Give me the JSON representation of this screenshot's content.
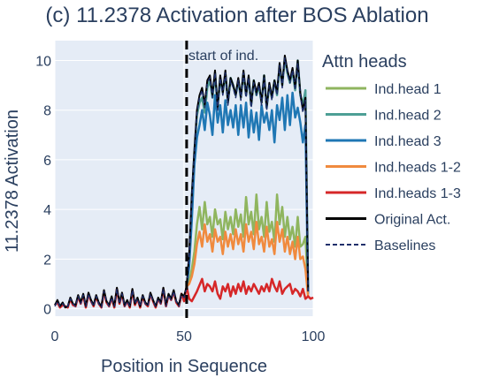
{
  "chart_data": {
    "type": "line",
    "title": "(c) 11.2378 Activation after BOS Ablation",
    "xlabel": "Position in Sequence",
    "ylabel": "11.2378 Activation",
    "xlim": [
      0,
      100
    ],
    "ylim": [
      -0.3,
      10.8
    ],
    "xticks": [
      0,
      50,
      100
    ],
    "yticks": [
      0,
      2,
      4,
      6,
      8,
      10
    ],
    "grid": true,
    "legend_title": "Attn heads",
    "legend_position": "right",
    "vline": {
      "x": 51,
      "label": "start of ind."
    },
    "series": [
      {
        "name": "Ind.head 1",
        "color": "#8fb55f",
        "dash": "solid",
        "segment": "late",
        "values": [
          0.9,
          1.1,
          1.6,
          2.3,
          3.4,
          4.1,
          3.2,
          4.3,
          3.4,
          3.7,
          2.9,
          4.0,
          3.4,
          3.6,
          2.8,
          3.9,
          3.2,
          3.7,
          3.0,
          4.0,
          3.3,
          3.8,
          2.9,
          4.5,
          3.4,
          3.9,
          3.0,
          4.6,
          3.2,
          3.7,
          2.9,
          4.3,
          3.1,
          3.5,
          2.7,
          4.6,
          3.4,
          4.1,
          2.9,
          3.7,
          2.8,
          3.3,
          2.5,
          3.7,
          2.5,
          2.6,
          2.9,
          0.8
        ]
      },
      {
        "name": "Ind.head 2",
        "color": "#4d9f95",
        "dash": "solid",
        "segment": "late",
        "values": [
          0.9,
          1.9,
          4.5,
          6.3,
          7.8,
          8.3,
          8.5,
          7.9,
          8.9,
          9.2,
          8.5,
          9.5,
          8.1,
          9.3,
          8.7,
          9.5,
          8.3,
          9.3,
          9.0,
          8.6,
          9.2,
          8.5,
          9.5,
          8.6,
          9.3,
          8.2,
          9.2,
          8.6,
          9.0,
          8.3,
          9.4,
          8.1,
          9.0,
          8.5,
          9.2,
          8.6,
          9.8,
          9.0,
          10.1,
          9.5,
          9.1,
          9.6,
          8.8,
          10.0,
          8.6,
          8.2,
          8.8,
          0.8
        ]
      },
      {
        "name": "Ind.head 3",
        "color": "#1f77b4",
        "dash": "solid",
        "segment": "late",
        "values": [
          0.9,
          1.7,
          3.6,
          5.8,
          6.9,
          7.4,
          8.0,
          7.2,
          8.3,
          7.8,
          7.0,
          8.6,
          7.5,
          8.2,
          7.1,
          8.4,
          7.4,
          8.0,
          7.3,
          8.2,
          7.0,
          8.2,
          7.3,
          8.3,
          6.9,
          8.0,
          7.1,
          7.9,
          6.8,
          8.2,
          7.5,
          7.9,
          7.2,
          8.0,
          6.7,
          8.2,
          7.6,
          8.5,
          7.2,
          8.6,
          7.4,
          8.7,
          7.7,
          8.1,
          7.5,
          6.7,
          7.4,
          0.6
        ]
      },
      {
        "name": "Ind.heads 1-2",
        "color": "#f08a3e",
        "dash": "solid",
        "segment": "late",
        "values": [
          0.9,
          1.0,
          1.3,
          1.8,
          2.6,
          3.1,
          2.5,
          3.4,
          2.7,
          3.0,
          2.3,
          3.2,
          2.7,
          2.9,
          2.2,
          3.1,
          2.5,
          3.0,
          2.4,
          3.2,
          2.6,
          3.0,
          2.3,
          3.4,
          2.7,
          3.1,
          2.4,
          3.5,
          2.6,
          2.9,
          2.3,
          3.3,
          2.5,
          2.8,
          2.2,
          3.5,
          2.7,
          3.2,
          2.3,
          2.9,
          2.2,
          2.7,
          2.0,
          2.9,
          2.0,
          2.1,
          1.6,
          0.5
        ]
      },
      {
        "name": "Ind.heads 1-3",
        "color": "#d62728",
        "dash": "solid",
        "segment": "full",
        "values": [
          0.15,
          0.25,
          0.05,
          0.15,
          0.1,
          0.05,
          0.4,
          0.15,
          0.1,
          0.5,
          0.2,
          0.55,
          0.05,
          0.6,
          0.3,
          0.1,
          0.5,
          0.2,
          0.05,
          0.7,
          0.25,
          0.1,
          0.45,
          0.05,
          0.8,
          0.2,
          0.6,
          0.1,
          0.3,
          0.05,
          0.75,
          0.15,
          0.4,
          0.05,
          0.5,
          0.2,
          0.1,
          0.6,
          0.3,
          0.05,
          0.4,
          0.2,
          0.8,
          0.1,
          0.55,
          0.35,
          0.7,
          0.25,
          0.1,
          0.6,
          0.3,
          0.9,
          0.4,
          0.3,
          0.5,
          0.7,
          0.95,
          1.2,
          0.7,
          1.0,
          0.9,
          0.7,
          1.1,
          0.6,
          0.4,
          0.9,
          0.7,
          1.0,
          0.5,
          0.9,
          0.6,
          1.0,
          0.7,
          1.1,
          0.6,
          0.9,
          0.7,
          1.0,
          0.8,
          0.6,
          0.9,
          0.7,
          1.0,
          0.7,
          1.2,
          0.9,
          0.7,
          1.1,
          0.6,
          0.8,
          0.9,
          1.0,
          0.6,
          0.8,
          0.7,
          0.5,
          0.8,
          0.4,
          0.5,
          0.4,
          0.45
        ]
      },
      {
        "name": "Original Act.",
        "color": "#000000",
        "dash": "solid",
        "segment": "full",
        "values": [
          0.15,
          0.35,
          0.1,
          0.25,
          0.05,
          0.1,
          0.45,
          0.2,
          0.15,
          0.55,
          0.25,
          0.6,
          0.1,
          0.65,
          0.35,
          0.15,
          0.55,
          0.25,
          0.1,
          0.75,
          0.3,
          0.15,
          0.5,
          0.1,
          0.85,
          0.25,
          0.65,
          0.15,
          0.35,
          0.1,
          0.8,
          0.2,
          0.45,
          0.1,
          0.55,
          0.25,
          0.15,
          0.65,
          0.35,
          0.1,
          0.45,
          0.25,
          0.85,
          0.15,
          0.6,
          0.4,
          0.75,
          0.3,
          0.15,
          0.6,
          0.5,
          0.9,
          2.2,
          4.6,
          6.4,
          8.0,
          8.6,
          8.9,
          8.2,
          9.2,
          9.4,
          8.6,
          9.6,
          8.1,
          9.4,
          8.7,
          9.6,
          8.3,
          9.3,
          9.0,
          8.6,
          9.3,
          8.5,
          9.6,
          8.6,
          9.4,
          8.2,
          9.2,
          8.7,
          9.1,
          8.3,
          9.4,
          8.1,
          9.1,
          8.5,
          9.2,
          8.7,
          9.9,
          9.0,
          10.2,
          9.6,
          9.2,
          9.7,
          8.9,
          10.0,
          8.7,
          8.0,
          8.5,
          0.7
        ]
      },
      {
        "name": "Baselines",
        "color": "#1f2f6b",
        "dash": "dash",
        "segment": "full",
        "values": [
          0.1,
          0.3,
          0.1,
          0.2,
          0.05,
          0.1,
          0.4,
          0.2,
          0.1,
          0.5,
          0.2,
          0.55,
          0.1,
          0.6,
          0.3,
          0.1,
          0.5,
          0.2,
          0.05,
          0.7,
          0.3,
          0.1,
          0.45,
          0.1,
          0.8,
          0.2,
          0.6,
          0.1,
          0.3,
          0.1,
          0.75,
          0.2,
          0.4,
          0.1,
          0.5,
          0.2,
          0.1,
          0.6,
          0.3,
          0.1,
          0.4,
          0.2,
          0.8,
          0.1,
          0.55,
          0.35,
          0.7,
          0.3,
          0.1,
          0.55,
          0.45,
          0.85,
          2.1,
          4.5,
          6.3,
          7.9,
          8.5,
          8.8,
          8.1,
          9.1,
          9.3,
          8.5,
          9.5,
          8.0,
          9.3,
          8.6,
          9.5,
          8.2,
          9.2,
          8.9,
          8.5,
          9.2,
          8.4,
          9.5,
          8.5,
          9.3,
          8.1,
          9.1,
          8.6,
          9.0,
          8.2,
          9.3,
          8.0,
          9.0,
          8.4,
          9.1,
          8.6,
          9.8,
          8.9,
          10.1,
          9.5,
          9.1,
          9.6,
          8.8,
          9.9,
          8.6,
          7.9,
          8.4,
          0.7
        ]
      }
    ]
  }
}
